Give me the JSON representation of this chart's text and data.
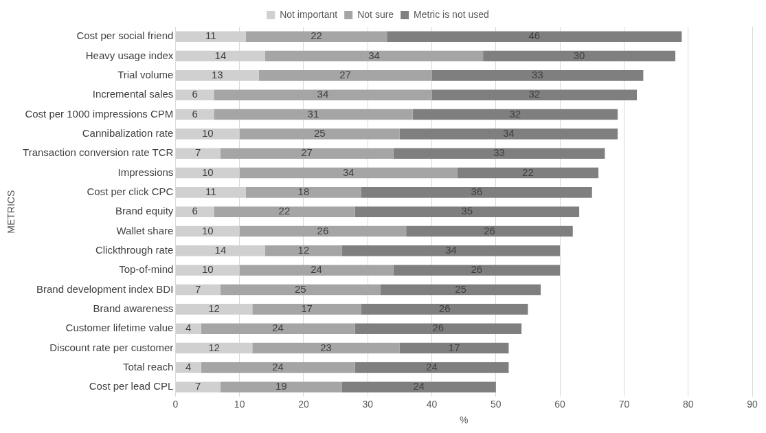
{
  "chart_data": {
    "type": "bar",
    "orientation": "horizontal",
    "stacked": true,
    "xlabel": "%",
    "ylabel": "METRICS",
    "categories": [
      "Cost per social friend",
      "Heavy usage index",
      "Trial volume",
      "Incremental sales",
      "Cost per 1000 impressions CPM",
      "Cannibalization rate",
      "Transaction conversion rate TCR",
      "Impressions",
      "Cost per click CPC",
      "Brand equity",
      "Wallet share",
      "Clickthrough rate",
      "Top-of-mind",
      "Brand development index BDI",
      "Brand awareness",
      "Customer lifetime value",
      "Discount rate per customer",
      "Total reach",
      "Cost per lead CPL"
    ],
    "series": [
      {
        "name": "Not important",
        "color": "#d0d0d0",
        "values": [
          11,
          14,
          13,
          6,
          6,
          10,
          7,
          10,
          11,
          6,
          10,
          14,
          10,
          7,
          12,
          4,
          12,
          4,
          7
        ]
      },
      {
        "name": "Not sure",
        "color": "#a5a5a5",
        "values": [
          22,
          34,
          27,
          34,
          31,
          25,
          27,
          34,
          18,
          22,
          26,
          12,
          24,
          25,
          17,
          24,
          23,
          24,
          19
        ]
      },
      {
        "name": "Metric is not used",
        "color": "#7f7f7f",
        "values": [
          46,
          30,
          33,
          32,
          32,
          34,
          33,
          22,
          36,
          35,
          26,
          34,
          26,
          25,
          26,
          26,
          17,
          24,
          24
        ]
      }
    ],
    "xlim": [
      0,
      90
    ],
    "xticks": [
      0,
      10,
      20,
      30,
      40,
      50,
      60,
      70,
      80,
      90
    ],
    "grid": "x",
    "legend": "top",
    "data_labels": true
  }
}
